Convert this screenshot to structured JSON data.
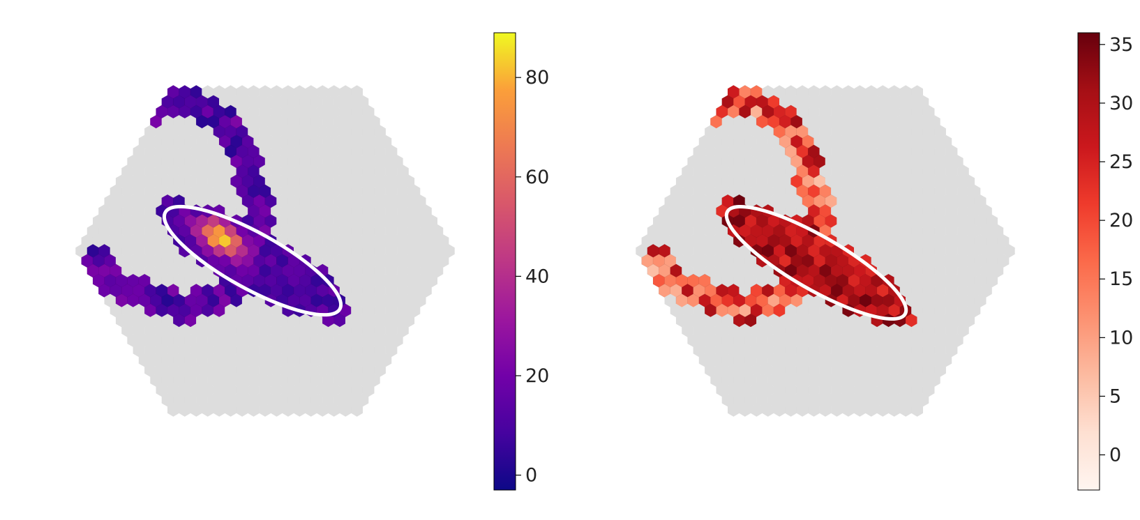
{
  "chart_data": [
    {
      "type": "heatmap",
      "title": "",
      "xlabel": "",
      "ylabel": "",
      "grid": false,
      "camera_outline": "hexagon",
      "background_pixel_color": "#dddddd",
      "colormap": "plasma",
      "colorbar": {
        "range": [
          -3,
          89
        ],
        "ticks": [
          0,
          20,
          40,
          60,
          80
        ],
        "tick_labels": [
          "0",
          "20",
          "40",
          "60",
          "80"
        ]
      },
      "ellipse_color": "#ffffff",
      "max_value_region": "bright core near upper-left end of the ellipse (up to ~89)",
      "typical_tail_values": "0 to 25"
    },
    {
      "type": "heatmap",
      "title": "",
      "xlabel": "",
      "ylabel": "",
      "grid": false,
      "camera_outline": "hexagon",
      "background_pixel_color": "#dddddd",
      "colormap": "Reds",
      "colorbar": {
        "range": [
          -3,
          36
        ],
        "ticks": [
          0,
          5,
          10,
          15,
          20,
          25,
          30,
          35
        ],
        "tick_labels": [
          "0",
          "5",
          "10",
          "15",
          "20",
          "25",
          "30",
          "35"
        ]
      },
      "ellipse_color": "#ffffff",
      "typical_core_values": "25 to 36",
      "typical_tail_values": "5 to 20"
    }
  ]
}
